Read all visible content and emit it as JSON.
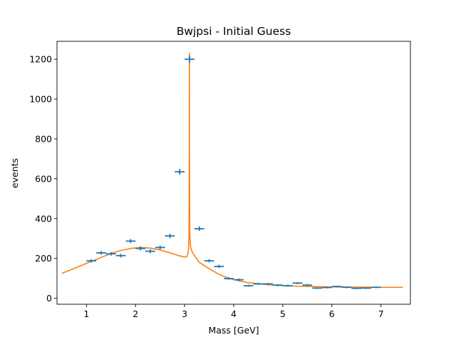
{
  "chart_data": {
    "type": "scatter",
    "title": "Bwjpsi - Initial Guess",
    "xlabel": "Mass [GeV]",
    "ylabel": "events",
    "xlim": [
      0.4,
      7.6
    ],
    "ylim": [
      -30,
      1290
    ],
    "xticks": [
      1,
      2,
      3,
      4,
      5,
      6,
      7
    ],
    "yticks": [
      0,
      200,
      400,
      600,
      800,
      1000,
      1200
    ],
    "grid": false,
    "colors": {
      "data": "#1f77b4",
      "fit": "#ff7f0e"
    },
    "series": [
      {
        "kind": "errorbar",
        "xerr": 0.1,
        "points": [
          {
            "x": 1.1,
            "y": 188,
            "yerr": 8
          },
          {
            "x": 1.3,
            "y": 228,
            "yerr": 9
          },
          {
            "x": 1.5,
            "y": 223,
            "yerr": 9
          },
          {
            "x": 1.7,
            "y": 214,
            "yerr": 9
          },
          {
            "x": 1.9,
            "y": 287,
            "yerr": 10
          },
          {
            "x": 2.1,
            "y": 250,
            "yerr": 10
          },
          {
            "x": 2.3,
            "y": 236,
            "yerr": 10
          },
          {
            "x": 2.5,
            "y": 255,
            "yerr": 10
          },
          {
            "x": 2.7,
            "y": 313,
            "yerr": 11
          },
          {
            "x": 2.9,
            "y": 635,
            "yerr": 14
          },
          {
            "x": 3.1,
            "y": 1200,
            "yerr": 18
          },
          {
            "x": 3.3,
            "y": 349,
            "yerr": 11
          },
          {
            "x": 3.5,
            "y": 188,
            "yerr": 8
          },
          {
            "x": 3.7,
            "y": 160,
            "yerr": 8
          },
          {
            "x": 3.9,
            "y": 99,
            "yerr": 6
          },
          {
            "x": 4.1,
            "y": 93,
            "yerr": 6
          },
          {
            "x": 4.3,
            "y": 63,
            "yerr": 5
          },
          {
            "x": 4.5,
            "y": 72,
            "yerr": 5
          },
          {
            "x": 4.7,
            "y": 72,
            "yerr": 5
          },
          {
            "x": 4.9,
            "y": 66,
            "yerr": 5
          },
          {
            "x": 5.1,
            "y": 63,
            "yerr": 5
          },
          {
            "x": 5.3,
            "y": 76,
            "yerr": 5
          },
          {
            "x": 5.5,
            "y": 66,
            "yerr": 5
          },
          {
            "x": 5.7,
            "y": 51,
            "yerr": 4
          },
          {
            "x": 5.9,
            "y": 54,
            "yerr": 4
          },
          {
            "x": 6.1,
            "y": 59,
            "yerr": 4
          },
          {
            "x": 6.3,
            "y": 55,
            "yerr": 4
          },
          {
            "x": 6.5,
            "y": 50,
            "yerr": 4
          },
          {
            "x": 6.7,
            "y": 51,
            "yerr": 4
          },
          {
            "x": 6.9,
            "y": 55,
            "yerr": 4
          }
        ]
      },
      {
        "kind": "line",
        "x": [
          0.5,
          0.7,
          0.9,
          1.1,
          1.3,
          1.5,
          1.7,
          1.9,
          2.1,
          2.3,
          2.5,
          2.7,
          2.9,
          3.0,
          3.05,
          3.08,
          3.09,
          3.095,
          3.097,
          3.099,
          3.105,
          3.12,
          3.15,
          3.2,
          3.3,
          3.5,
          3.7,
          3.9,
          4.1,
          4.3,
          4.5,
          4.7,
          5.0,
          5.5,
          6.0,
          6.5,
          7.0,
          7.45
        ],
        "y": [
          125,
          145,
          165,
          185,
          205,
          225,
          240,
          250,
          255,
          252,
          243,
          228,
          213,
          206,
          210,
          240,
          330,
          700,
          1230,
          700,
          330,
          260,
          235,
          215,
          180,
          148,
          120,
          100,
          88,
          78,
          73,
          68,
          63,
          59,
          57,
          56,
          55,
          55
        ]
      }
    ]
  }
}
